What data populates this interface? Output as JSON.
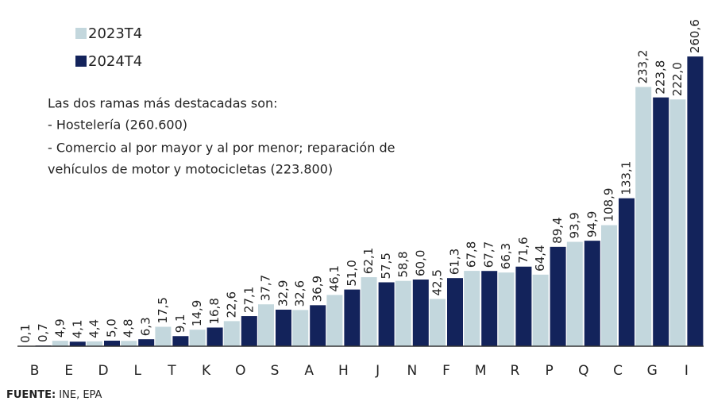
{
  "chart_data": {
    "type": "bar",
    "categories": [
      "B",
      "E",
      "D",
      "L",
      "T",
      "K",
      "O",
      "S",
      "A",
      "H",
      "J",
      "N",
      "F",
      "M",
      "R",
      "P",
      "Q",
      "C",
      "G",
      "I"
    ],
    "series": [
      {
        "name": "2023T4",
        "color": "#c3d7dd",
        "label_color": "#6ea5ab",
        "values": [
          0.1,
          4.9,
          4.4,
          4.8,
          17.5,
          14.9,
          22.6,
          37.7,
          32.6,
          46.1,
          62.1,
          58.8,
          42.5,
          67.8,
          66.3,
          64.4,
          93.9,
          108.9,
          233.2,
          222.0
        ],
        "value_labels": [
          "0,1",
          "4,9",
          "4,4",
          "4,8",
          "17,5",
          "14,9",
          "22,6",
          "37,7",
          "32,6",
          "46,1",
          "62,1",
          "58,8",
          "42,5",
          "67,8",
          "66,3",
          "64,4",
          "93,9",
          "108,9",
          "233,2",
          "222,0"
        ]
      },
      {
        "name": "2024T4",
        "color": "#13235b",
        "label_color": "#13235b",
        "values": [
          0.7,
          4.1,
          5.0,
          6.3,
          9.1,
          16.8,
          27.1,
          32.9,
          36.9,
          51.0,
          57.5,
          60.0,
          61.3,
          67.7,
          71.6,
          89.4,
          94.9,
          133.1,
          223.8,
          260.6
        ],
        "value_labels": [
          "0,7",
          "4,1",
          "5,0",
          "6,3",
          "9,1",
          "16,8",
          "27,1",
          "32,9",
          "36,9",
          "51,0",
          "57,5",
          "60,0",
          "61,3",
          "67,7",
          "71,6",
          "89,4",
          "94,9",
          "133,1",
          "223,8",
          "260,6"
        ]
      }
    ],
    "ylim": [
      0,
      270
    ],
    "annotation": [
      "Las dos ramas más destacadas son:",
      "- Hostelería (260.600)",
      "- Comercio al por mayor y al por menor; reparación de",
      "vehículos de motor y motocicletas (223.800)"
    ],
    "source": {
      "label": "FUENTE:",
      "text": "INE, EPA"
    }
  }
}
